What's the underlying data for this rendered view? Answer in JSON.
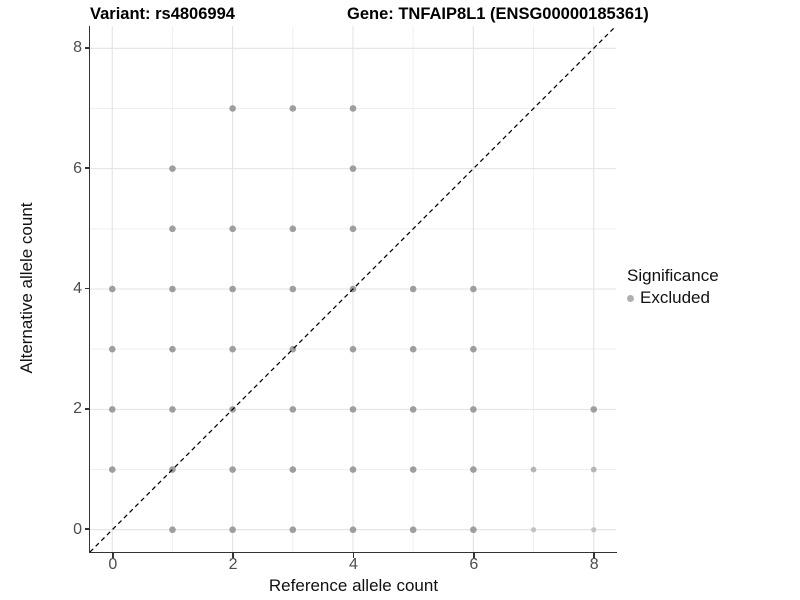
{
  "header": {
    "title_left": "Variant: rs4806994",
    "title_right": "Gene: TNFAIP8L1 (ENSG00000185361)"
  },
  "axes": {
    "x_title": "Reference allele count",
    "y_title": "Alternative allele count",
    "x_tick_labels": [
      "0",
      "2",
      "4",
      "6",
      "8"
    ],
    "y_tick_labels": [
      "0",
      "2",
      "4",
      "6",
      "8"
    ]
  },
  "legend": {
    "title": "Significance",
    "items": [
      {
        "label": "Excluded",
        "color": "#b0b0b0"
      }
    ]
  },
  "chart_data": {
    "type": "scatter",
    "title": "Variant: rs4806994 / Gene: TNFAIP8L1 (ENSG00000185361)",
    "xlabel": "Reference allele count",
    "ylabel": "Alternative allele count",
    "xlim": [
      -0.37,
      8.37
    ],
    "ylim": [
      -0.37,
      8.37
    ],
    "x_ticks": [
      0,
      2,
      4,
      6,
      8
    ],
    "y_ticks": [
      0,
      2,
      4,
      6,
      8
    ],
    "minor_ticks": [
      1,
      3,
      5,
      7
    ],
    "grid": true,
    "grid_major_color": "#e3e3e3",
    "grid_minor_color": "#efefef",
    "identity_line": {
      "slope": 1,
      "intercept": 0,
      "style": "dashed",
      "color": "#000000"
    },
    "legend_position": "right",
    "shades": {
      "m": {
        "color": "#9e9e9e",
        "r": 3.3
      },
      "ml": {
        "color": "#b5b5b5",
        "r": 2.9
      },
      "l": {
        "color": "#c3c3c3",
        "r": 2.6
      }
    },
    "series": [
      {
        "name": "Excluded",
        "points": [
          {
            "x": 0,
            "y": 1,
            "s": "m"
          },
          {
            "x": 0,
            "y": 2,
            "s": "m"
          },
          {
            "x": 0,
            "y": 3,
            "s": "m"
          },
          {
            "x": 0,
            "y": 4,
            "s": "m"
          },
          {
            "x": 1,
            "y": 0,
            "s": "m"
          },
          {
            "x": 1,
            "y": 1,
            "s": "m"
          },
          {
            "x": 1,
            "y": 2,
            "s": "m"
          },
          {
            "x": 1,
            "y": 3,
            "s": "m"
          },
          {
            "x": 1,
            "y": 4,
            "s": "m"
          },
          {
            "x": 1,
            "y": 5,
            "s": "m"
          },
          {
            "x": 1,
            "y": 6,
            "s": "m"
          },
          {
            "x": 2,
            "y": 0,
            "s": "m"
          },
          {
            "x": 2,
            "y": 1,
            "s": "m"
          },
          {
            "x": 2,
            "y": 2,
            "s": "m"
          },
          {
            "x": 2,
            "y": 3,
            "s": "m"
          },
          {
            "x": 2,
            "y": 4,
            "s": "m"
          },
          {
            "x": 2,
            "y": 5,
            "s": "m"
          },
          {
            "x": 2,
            "y": 7,
            "s": "m"
          },
          {
            "x": 3,
            "y": 0,
            "s": "m"
          },
          {
            "x": 3,
            "y": 1,
            "s": "m"
          },
          {
            "x": 3,
            "y": 2,
            "s": "m"
          },
          {
            "x": 3,
            "y": 3,
            "s": "m"
          },
          {
            "x": 3,
            "y": 4,
            "s": "m"
          },
          {
            "x": 3,
            "y": 5,
            "s": "m"
          },
          {
            "x": 3,
            "y": 7,
            "s": "m"
          },
          {
            "x": 4,
            "y": 0,
            "s": "m"
          },
          {
            "x": 4,
            "y": 1,
            "s": "m"
          },
          {
            "x": 4,
            "y": 2,
            "s": "m"
          },
          {
            "x": 4,
            "y": 3,
            "s": "m"
          },
          {
            "x": 4,
            "y": 4,
            "s": "m"
          },
          {
            "x": 4,
            "y": 5,
            "s": "m"
          },
          {
            "x": 4,
            "y": 6,
            "s": "m"
          },
          {
            "x": 4,
            "y": 7,
            "s": "m"
          },
          {
            "x": 5,
            "y": 0,
            "s": "m"
          },
          {
            "x": 5,
            "y": 1,
            "s": "m"
          },
          {
            "x": 5,
            "y": 2,
            "s": "m"
          },
          {
            "x": 5,
            "y": 3,
            "s": "m"
          },
          {
            "x": 5,
            "y": 4,
            "s": "m"
          },
          {
            "x": 6,
            "y": 0,
            "s": "m"
          },
          {
            "x": 6,
            "y": 1,
            "s": "m"
          },
          {
            "x": 6,
            "y": 2,
            "s": "m"
          },
          {
            "x": 6,
            "y": 3,
            "s": "m"
          },
          {
            "x": 6,
            "y": 4,
            "s": "m"
          },
          {
            "x": 7,
            "y": 0,
            "s": "l"
          },
          {
            "x": 7,
            "y": 1,
            "s": "ml"
          },
          {
            "x": 8,
            "y": 0,
            "s": "l"
          },
          {
            "x": 8,
            "y": 1,
            "s": "ml"
          },
          {
            "x": 8,
            "y": 2,
            "s": "m"
          }
        ]
      }
    ]
  }
}
